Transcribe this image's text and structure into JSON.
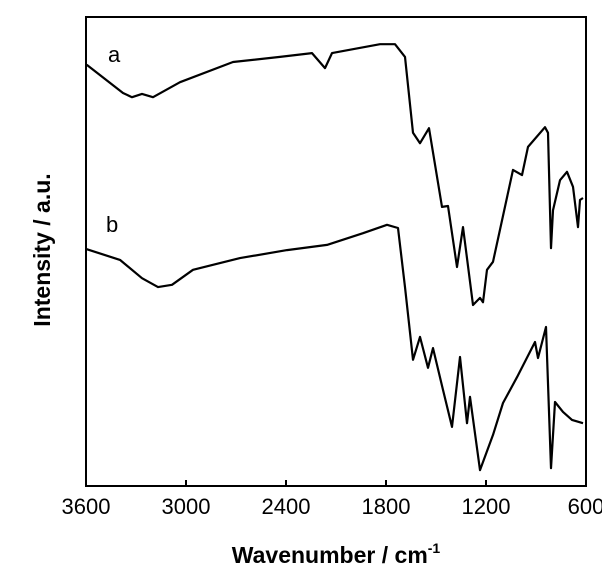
{
  "chart_data": {
    "type": "line",
    "xlabel": "Wavenumber / cm",
    "xlabel_superscript": "-1",
    "ylabel": "Intensity / a.u.",
    "xlim": [
      3600,
      600
    ],
    "x_reversed": true,
    "ylim": [
      0,
      100
    ],
    "y_ticks_shown": false,
    "grid": false,
    "legend": "none",
    "x_ticks": [
      3600,
      3000,
      2400,
      1800,
      1200,
      600
    ],
    "x_tick_labels": [
      "3600",
      "3000",
      "2400",
      "1800",
      "1200",
      "600"
    ],
    "line_color": "#000000",
    "series": [
      {
        "name": "a",
        "x": [
          3596,
          3378,
          3324,
          3264,
          3198,
          3036,
          2718,
          2436,
          2244,
          2166,
          2124,
          1836,
          1746,
          1686,
          1638,
          1596,
          1542,
          1464,
          1428,
          1374,
          1338,
          1278,
          1236,
          1218,
          1194,
          1158,
          1038,
          984,
          948,
          846,
          828,
          810,
          798,
          756,
          714,
          678,
          648,
          636,
          618
        ],
        "y": [
          89.8,
          83.8,
          82.9,
          83.6,
          82.9,
          86.1,
          90.4,
          91.5,
          92.3,
          89.1,
          92.3,
          94.2,
          94.2,
          91.5,
          75.3,
          73.1,
          76.3,
          59.5,
          59.7,
          46.7,
          55.2,
          38.6,
          40.1,
          39.2,
          46.1,
          47.8,
          67.4,
          66.3,
          72.3,
          76.5,
          75.3,
          50.7,
          58.8,
          65.2,
          67.0,
          63.8,
          55.2,
          61.0,
          61.4
        ]
      },
      {
        "name": "b",
        "x": [
          3596,
          3396,
          3264,
          3168,
          3084,
          2958,
          2676,
          2394,
          2154,
          1938,
          1794,
          1728,
          1686,
          1638,
          1596,
          1548,
          1518,
          1458,
          1404,
          1356,
          1314,
          1296,
          1236,
          1158,
          1098,
          1014,
          906,
          888,
          840,
          810,
          786,
          738,
          684,
          618
        ],
        "y": [
          50.5,
          48.2,
          44.3,
          42.4,
          42.9,
          46.1,
          48.6,
          50.3,
          51.4,
          53.9,
          55.7,
          55.0,
          42.4,
          26.9,
          31.8,
          25.2,
          29.4,
          20.5,
          12.6,
          27.5,
          13.4,
          19.0,
          3.4,
          10.9,
          17.7,
          23.2,
          30.7,
          27.3,
          33.9,
          3.8,
          17.9,
          15.8,
          14.1,
          13.4
        ]
      }
    ]
  }
}
